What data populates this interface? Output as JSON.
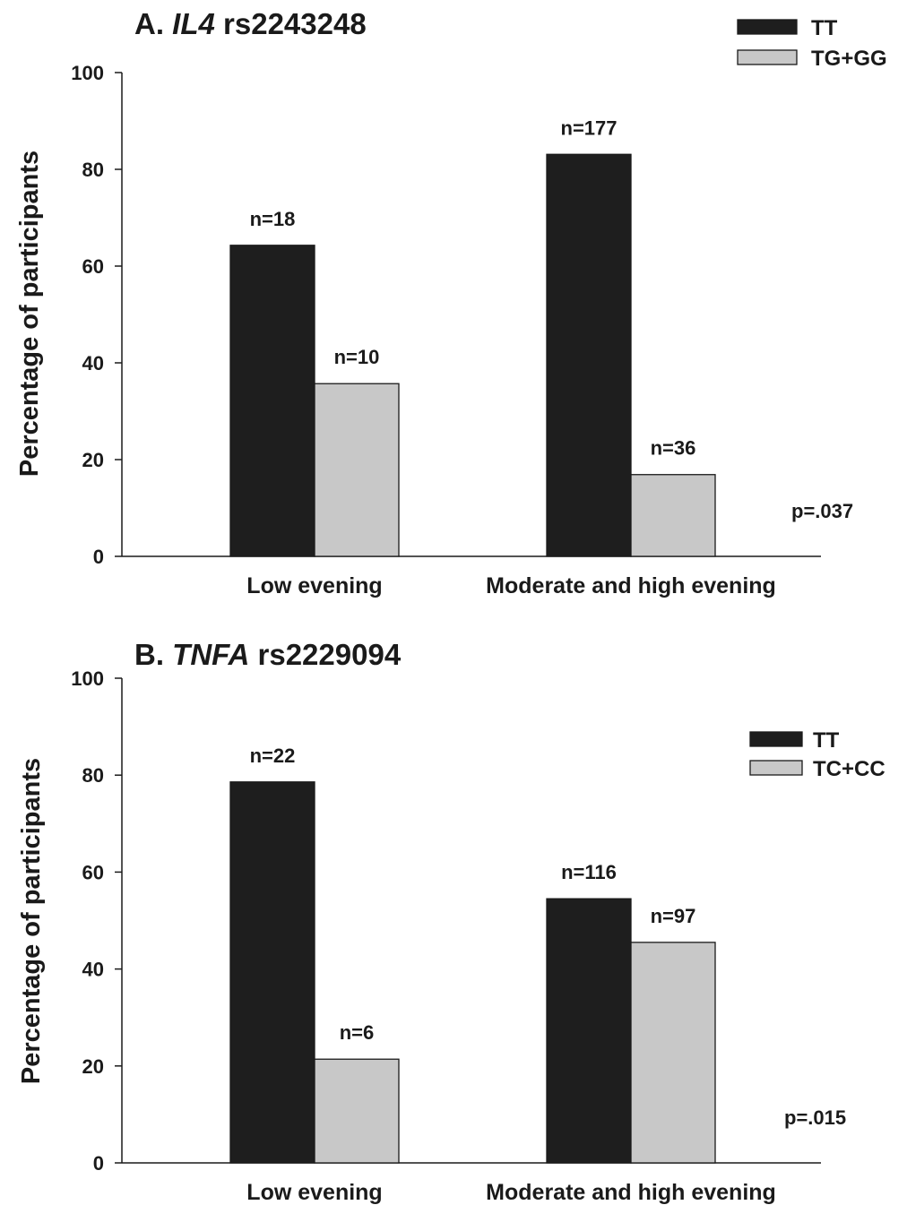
{
  "colors": {
    "TT": "#1e1e1e",
    "other": "#c8c8c8",
    "axis": "#1a1a1a"
  },
  "chart_data": [
    {
      "type": "bar",
      "title_prefix": "A. ",
      "title_gene": "IL4",
      "title_snp": " rs2243248",
      "ylabel": "Percentage of participants",
      "xlabel": "",
      "ylim": [
        0,
        100
      ],
      "yticks": [
        "0",
        "20",
        "40",
        "60",
        "80",
        "100"
      ],
      "grid": false,
      "legend_position": "top-right",
      "categories": [
        "Low evening",
        "Moderate and high evening"
      ],
      "series": [
        {
          "name": "TT",
          "color_key": "TT",
          "values": [
            64.3,
            83.1
          ],
          "labels": [
            "n=18",
            "n=177"
          ]
        },
        {
          "name": "TG+GG",
          "color_key": "other",
          "values": [
            35.7,
            16.9
          ],
          "labels": [
            "n=10",
            "n=36"
          ]
        }
      ],
      "annotation": "p=.037"
    },
    {
      "type": "bar",
      "title_prefix": "B. ",
      "title_gene": "TNFA",
      "title_snp": " rs2229094",
      "ylabel": "Percentage of participants",
      "xlabel": "",
      "ylim": [
        0,
        100
      ],
      "yticks": [
        "0",
        "20",
        "40",
        "60",
        "80",
        "100"
      ],
      "grid": false,
      "legend_position": "top-right",
      "categories": [
        "Low evening",
        "Moderate and high evening"
      ],
      "series": [
        {
          "name": "TT",
          "color_key": "TT",
          "values": [
            78.6,
            54.5
          ],
          "labels": [
            "n=22",
            "n=116"
          ]
        },
        {
          "name": "TC+CC",
          "color_key": "other",
          "values": [
            21.4,
            45.5
          ],
          "labels": [
            "n=6",
            "n=97"
          ]
        }
      ],
      "annotation": "p=.015"
    }
  ]
}
